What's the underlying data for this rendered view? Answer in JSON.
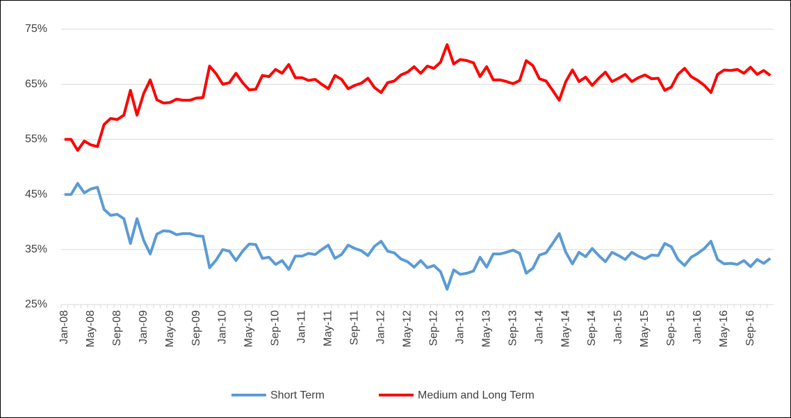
{
  "chart_data": {
    "type": "line",
    "categories": [
      "Jan-08",
      null,
      null,
      null,
      "May-08",
      null,
      null,
      null,
      "Sep-08",
      null,
      null,
      null,
      "Jan-09",
      null,
      null,
      null,
      "May-09",
      null,
      null,
      null,
      "Sep-09",
      null,
      null,
      null,
      "Jan-10",
      null,
      null,
      null,
      "May-10",
      null,
      null,
      null,
      "Sep-10",
      null,
      null,
      null,
      "Jan-11",
      null,
      null,
      null,
      "May-11",
      null,
      null,
      null,
      "Sep-11",
      null,
      null,
      null,
      "Jan-12",
      null,
      null,
      null,
      "May-12",
      null,
      null,
      null,
      "Sep-12",
      null,
      null,
      null,
      "Jan-13",
      null,
      null,
      null,
      "May-13",
      null,
      null,
      null,
      "Sep-13",
      null,
      null,
      null,
      "Jan-14",
      null,
      null,
      null,
      "May-14",
      null,
      null,
      null,
      "Sep-14",
      null,
      null,
      null,
      "Jan-15",
      null,
      null,
      null,
      "May-15",
      null,
      null,
      null,
      "Sep-15",
      null,
      null,
      null,
      "Jan-16",
      null,
      null,
      null,
      "May-16",
      null,
      null,
      null,
      "Sep-16",
      null,
      null,
      null
    ],
    "series": [
      {
        "name": "Short Term",
        "color": "#5b9bd5",
        "values": [
          45,
          45,
          47,
          45.3,
          46,
          46.3,
          42.3,
          41.2,
          41.4,
          40.6,
          36.1,
          40.6,
          36.7,
          34.2,
          37.8,
          38.4,
          38.3,
          37.7,
          37.9,
          37.9,
          37.5,
          37.4,
          31.7,
          33.1,
          35,
          34.7,
          33,
          34.7,
          36,
          35.9,
          33.4,
          33.6,
          32.3,
          33,
          31.4,
          33.8,
          33.8,
          34.3,
          34.1,
          35,
          35.8,
          33.4,
          34.1,
          35.8,
          35.2,
          34.8,
          33.9,
          35.6,
          36.5,
          34.7,
          34.4,
          33.3,
          32.8,
          31.8,
          33,
          31.7,
          32.1,
          31,
          27.8,
          31.3,
          30.5,
          30.7,
          31.1,
          33.6,
          31.8,
          34.2,
          34.2,
          34.5,
          34.9,
          34.3,
          30.7,
          31.6,
          34,
          34.4,
          36.1,
          37.9,
          34.5,
          32.4,
          34.5,
          33.7,
          35.2,
          33.9,
          32.8,
          34.5,
          33.9,
          33.2,
          34.5,
          33.8,
          33.3,
          34,
          33.9,
          36.1,
          35.5,
          33.2,
          32.1,
          33.6,
          34.3,
          35.2,
          36.5,
          33.2,
          32.4,
          32.5,
          32.3,
          33,
          31.9,
          33.2,
          32.5,
          33.4
        ]
      },
      {
        "name": "Medium and Long Term",
        "color": "#ff0000",
        "values": [
          55,
          55,
          53,
          54.7,
          54,
          53.7,
          57.7,
          58.8,
          58.6,
          59.4,
          63.9,
          59.4,
          63.3,
          65.8,
          62.2,
          61.6,
          61.7,
          62.3,
          62.1,
          62.1,
          62.5,
          62.6,
          68.3,
          66.9,
          65,
          65.3,
          67,
          65.3,
          64,
          64.1,
          66.6,
          66.4,
          67.7,
          67,
          68.6,
          66.2,
          66.2,
          65.7,
          65.9,
          65,
          64.2,
          66.6,
          65.9,
          64.2,
          64.8,
          65.2,
          66.1,
          64.4,
          63.5,
          65.3,
          65.6,
          66.7,
          67.2,
          68.2,
          67,
          68.3,
          67.9,
          69,
          72.2,
          68.7,
          69.5,
          69.3,
          68.9,
          66.4,
          68.2,
          65.8,
          65.8,
          65.5,
          65.1,
          65.7,
          69.3,
          68.4,
          66,
          65.6,
          63.9,
          62.1,
          65.5,
          67.6,
          65.5,
          66.3,
          64.8,
          66.1,
          67.2,
          65.5,
          66.1,
          66.8,
          65.5,
          66.2,
          66.7,
          66,
          66.1,
          63.9,
          64.5,
          66.8,
          67.9,
          66.4,
          65.7,
          64.8,
          63.5,
          66.8,
          67.6,
          67.5,
          67.7,
          67,
          68.1,
          66.8,
          67.5,
          66.6
        ]
      }
    ],
    "ylim": [
      25,
      75
    ],
    "yticks": [
      {
        "value": 25,
        "label": "25%"
      },
      {
        "value": 35,
        "label": "35%"
      },
      {
        "value": 45,
        "label": "45%"
      },
      {
        "value": 55,
        "label": "55%"
      },
      {
        "value": 65,
        "label": "65%"
      },
      {
        "value": 75,
        "label": "75%"
      }
    ],
    "grid": true,
    "legend": "bottom"
  }
}
